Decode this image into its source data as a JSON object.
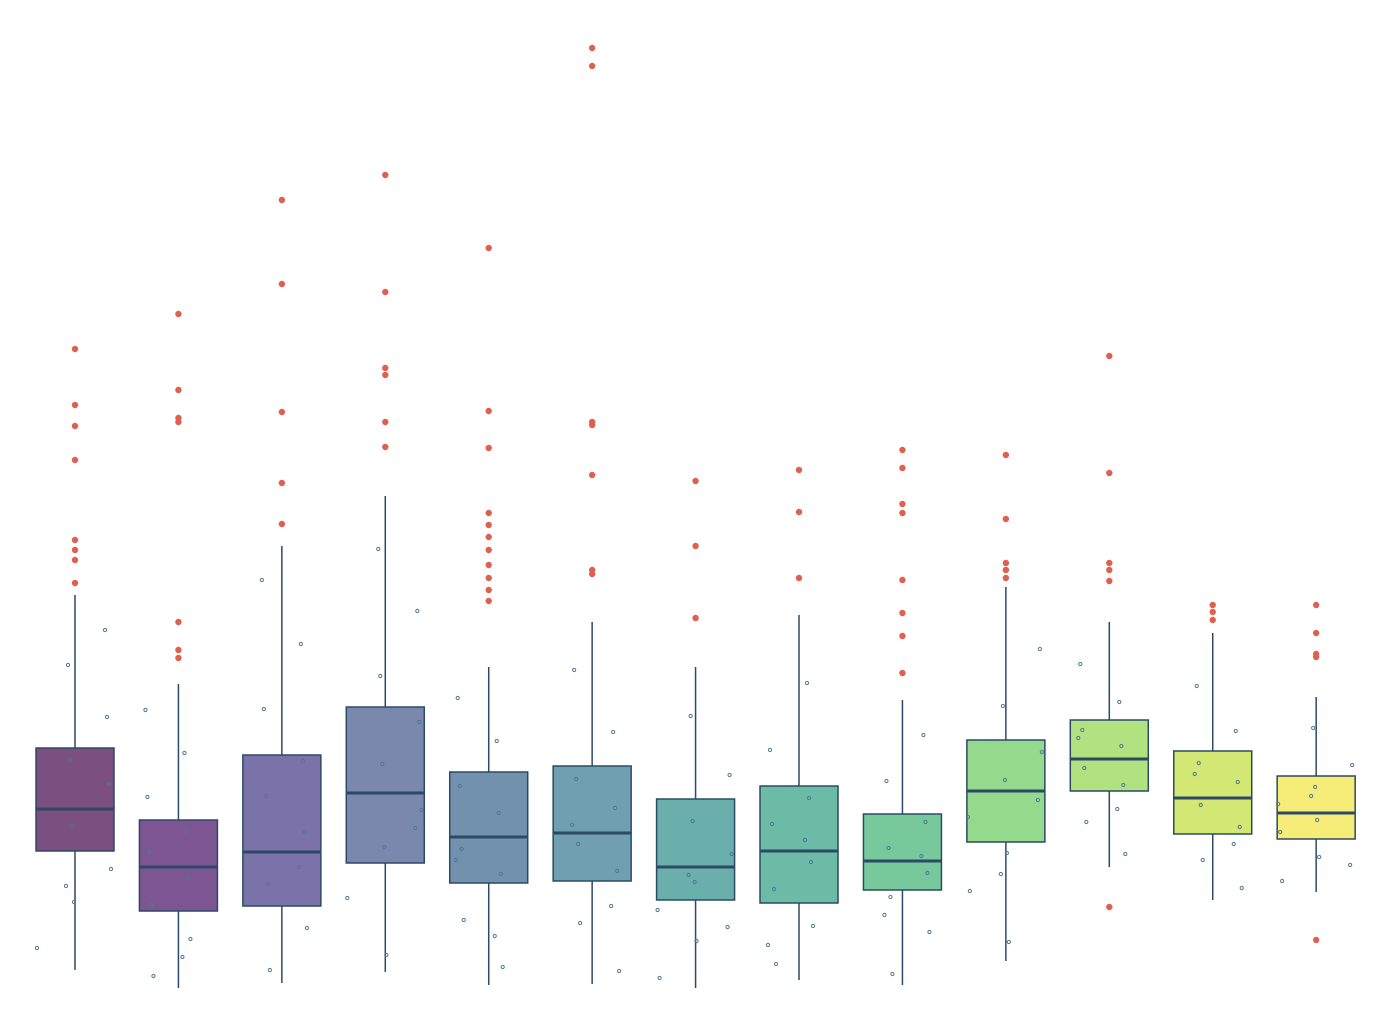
{
  "chart_data": {
    "type": "box",
    "ylim": [
      0,
      100
    ],
    "outlier_color": "#e0604f",
    "point_color": "#4f7896",
    "line_color": "#2c4a66",
    "boxes": [
      {
        "color": "#7b4f7f",
        "whisker_low": 3.0,
        "q1": 14.9,
        "median": 19.1,
        "q3": 25.2,
        "whisker_high": 40.5,
        "outliers": [
          41.7,
          44.0,
          45.0,
          46.0,
          54.0,
          57.4,
          59.5,
          65.1
        ],
        "points": [
          5.2,
          9.8,
          13.1,
          17.4,
          21.6,
          24.0,
          28.3,
          33.5,
          37.0,
          11.4
        ]
      },
      {
        "color": "#7c5592",
        "whisker_low": 1.2,
        "q1": 8.9,
        "median": 13.3,
        "q3": 18.0,
        "whisker_high": 31.6,
        "outliers": [
          34.2,
          35.0,
          37.8,
          57.8,
          58.2,
          61.0,
          68.6
        ],
        "points": [
          2.4,
          6.1,
          9.5,
          12.2,
          14.8,
          16.9,
          20.3,
          24.7,
          29.0,
          4.3
        ]
      },
      {
        "color": "#7a72a8",
        "whisker_low": 1.7,
        "q1": 9.4,
        "median": 14.8,
        "q3": 24.5,
        "whisker_high": 45.4,
        "outliers": [
          47.6,
          51.7,
          58.8,
          71.6,
          80.0
        ],
        "points": [
          3.0,
          7.2,
          11.6,
          16.8,
          20.4,
          23.9,
          29.1,
          35.6,
          42.0,
          13.3
        ]
      },
      {
        "color": "#7a88ae",
        "whisker_low": 2.8,
        "q1": 13.7,
        "median": 20.7,
        "q3": 29.3,
        "whisker_high": 50.4,
        "outliers": [
          55.3,
          57.8,
          62.5,
          63.2,
          70.8,
          82.5
        ],
        "points": [
          4.5,
          10.2,
          15.3,
          19.0,
          23.6,
          27.8,
          32.4,
          38.9,
          45.1,
          17.2
        ]
      },
      {
        "color": "#7191ad",
        "whisker_low": 1.5,
        "q1": 11.7,
        "median": 16.3,
        "q3": 22.8,
        "whisker_high": 33.3,
        "outliers": [
          39.9,
          41.0,
          42.2,
          43.5,
          45.0,
          46.3,
          47.5,
          48.7,
          55.2,
          58.9,
          75.2
        ],
        "points": [
          3.3,
          8.0,
          12.6,
          15.1,
          18.7,
          21.4,
          25.9,
          30.2,
          6.4,
          14.0
        ]
      },
      {
        "color": "#6f9fb0",
        "whisker_low": 1.6,
        "q1": 11.9,
        "median": 16.7,
        "q3": 23.4,
        "whisker_high": 37.8,
        "outliers": [
          42.6,
          43.0,
          52.5,
          57.5,
          57.8,
          93.4,
          95.2
        ],
        "points": [
          2.9,
          7.7,
          12.9,
          15.6,
          19.2,
          22.1,
          26.8,
          33.0,
          9.4,
          17.5
        ]
      },
      {
        "color": "#6aafac",
        "whisker_low": 1.2,
        "q1": 10.0,
        "median": 13.3,
        "q3": 20.1,
        "whisker_high": 33.3,
        "outliers": [
          38.2,
          45.4,
          51.9
        ],
        "points": [
          2.2,
          5.9,
          9.0,
          11.8,
          14.6,
          17.9,
          22.5,
          28.4,
          7.3,
          12.5
        ]
      },
      {
        "color": "#6cbba6",
        "whisker_low": 2.0,
        "q1": 9.7,
        "median": 14.9,
        "q3": 21.4,
        "whisker_high": 38.5,
        "outliers": [
          42.2,
          48.8,
          53.0
        ],
        "points": [
          3.6,
          7.4,
          11.1,
          13.8,
          17.6,
          20.2,
          25.0,
          31.7,
          5.5,
          16.0
        ]
      },
      {
        "color": "#77c99c",
        "whisker_low": 1.5,
        "q1": 11.0,
        "median": 13.9,
        "q3": 18.6,
        "whisker_high": 30.0,
        "outliers": [
          32.7,
          36.4,
          38.7,
          42.0,
          48.7,
          49.6,
          53.2,
          55.0
        ],
        "points": [
          2.6,
          6.8,
          10.3,
          12.7,
          15.2,
          17.8,
          21.9,
          26.5,
          8.5,
          14.4
        ]
      },
      {
        "color": "#94d98c",
        "whisker_low": 3.9,
        "q1": 15.8,
        "median": 20.9,
        "q3": 26.0,
        "whisker_high": 41.3,
        "outliers": [
          42.2,
          43.0,
          43.7,
          48.1,
          54.5
        ],
        "points": [
          5.8,
          10.9,
          14.7,
          18.3,
          22.0,
          24.8,
          29.4,
          35.1,
          12.6,
          20.0
        ]
      },
      {
        "color": "#b0e37f",
        "whisker_low": 13.3,
        "q1": 20.9,
        "median": 24.1,
        "q3": 28.0,
        "whisker_high": 37.8,
        "outliers": [
          9.3,
          41.9,
          43.0,
          43.7,
          52.7,
          64.4
        ],
        "points": [
          14.6,
          17.8,
          21.5,
          23.2,
          25.4,
          27.0,
          29.8,
          33.6,
          19.1,
          26.2
        ]
      },
      {
        "color": "#d2e774",
        "whisker_low": 10.0,
        "q1": 16.6,
        "median": 20.2,
        "q3": 24.9,
        "whisker_high": 36.7,
        "outliers": [
          38.0,
          38.8,
          39.5
        ],
        "points": [
          11.2,
          14.0,
          17.3,
          19.5,
          21.8,
          23.7,
          26.9,
          31.4,
          15.6,
          22.6
        ]
      },
      {
        "color": "#f6ec78",
        "whisker_low": 10.8,
        "q1": 16.1,
        "median": 18.7,
        "q3": 22.4,
        "whisker_high": 30.3,
        "outliers": [
          6.0,
          34.3,
          34.6,
          36.7,
          39.5
        ],
        "points": [
          11.9,
          14.3,
          16.8,
          18.0,
          19.6,
          21.3,
          23.5,
          27.2,
          13.5,
          20.4
        ]
      }
    ]
  }
}
